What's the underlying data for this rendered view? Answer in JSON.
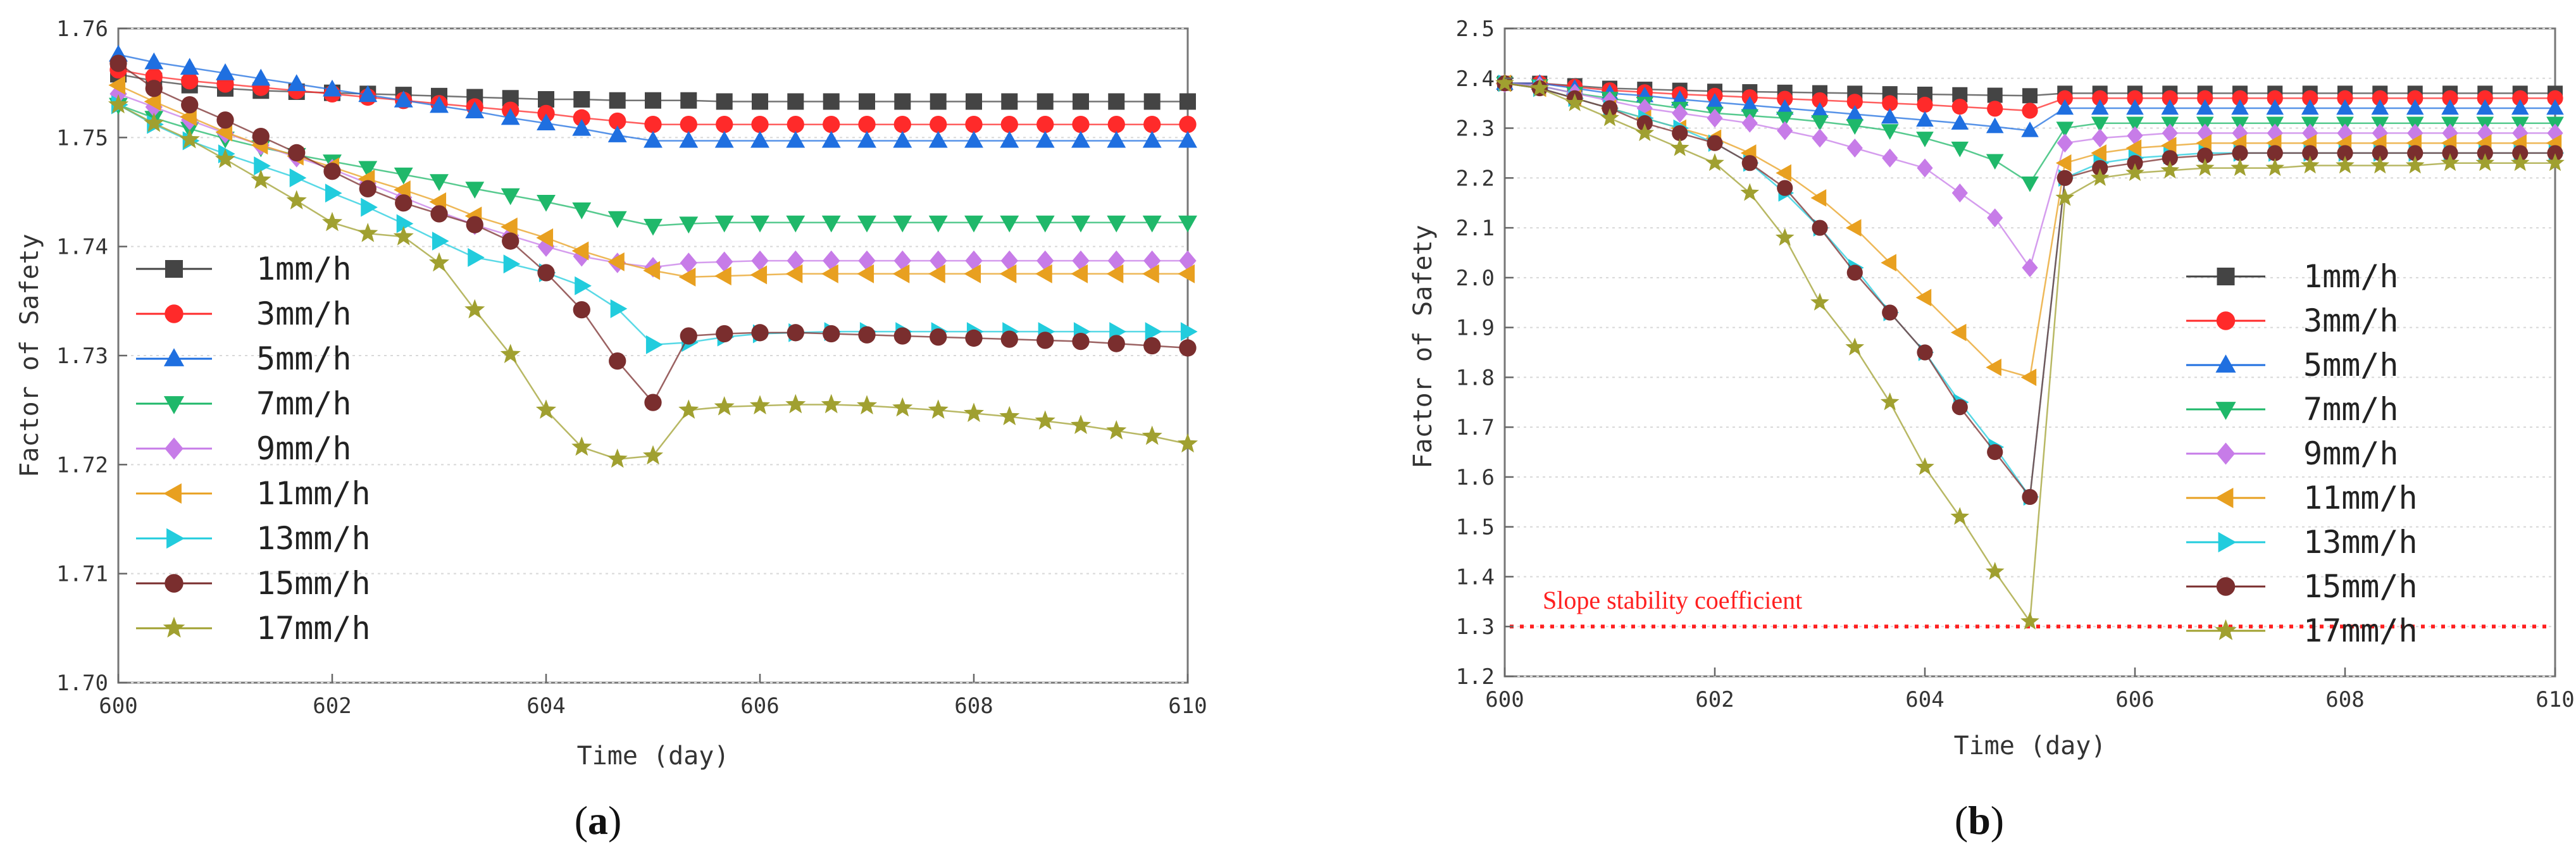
{
  "chart_data": [
    {
      "type": "line",
      "panel_label": "(a)",
      "panel_letter": "a",
      "title": "",
      "xlabel": "Time (day)",
      "ylabel": "Factor of Safety",
      "xlim": [
        600,
        610
      ],
      "ylim": [
        1.7,
        1.76
      ],
      "xticks": [
        600,
        602,
        604,
        606,
        608,
        610
      ],
      "yticks": [
        1.7,
        1.71,
        1.72,
        1.73,
        1.74,
        1.75,
        1.76
      ],
      "ytick_labels": [
        "1.70",
        "1.71",
        "1.72",
        "1.73",
        "1.74",
        "1.75",
        "1.76"
      ],
      "legend_position": "left",
      "x": [
        600,
        600.333,
        600.667,
        601,
        601.333,
        601.667,
        602,
        602.333,
        602.667,
        603,
        603.333,
        603.667,
        604,
        604.333,
        604.667,
        605,
        605.333,
        605.667,
        606,
        606.333,
        606.667,
        607,
        607.333,
        607.667,
        608,
        608.333,
        608.667,
        609,
        609.333,
        609.667,
        610
      ],
      "series": [
        {
          "name": "1mm/h",
          "color": "#444444",
          "marker": "square",
          "values": [
            1.7558,
            1.7552,
            1.7548,
            1.7545,
            1.7543,
            1.7542,
            1.7541,
            1.754,
            1.7539,
            1.7538,
            1.7537,
            1.7536,
            1.7535,
            1.7535,
            1.7534,
            1.7534,
            1.7534,
            1.7533,
            1.7533,
            1.7533,
            1.7533,
            1.7533,
            1.7533,
            1.7533,
            1.7533,
            1.7533,
            1.7533,
            1.7533,
            1.7533,
            1.7533,
            1.7533
          ]
        },
        {
          "name": "3mm/h",
          "color": "#ff2a2a",
          "marker": "circle",
          "values": [
            1.7562,
            1.7556,
            1.7552,
            1.7549,
            1.7546,
            1.7543,
            1.754,
            1.7537,
            1.7534,
            1.7531,
            1.7528,
            1.7525,
            1.7522,
            1.7518,
            1.7515,
            1.7512,
            1.7512,
            1.7512,
            1.7512,
            1.7512,
            1.7512,
            1.7512,
            1.7512,
            1.7512,
            1.7512,
            1.7512,
            1.7512,
            1.7512,
            1.7512,
            1.7512,
            1.7512
          ]
        },
        {
          "name": "5mm/h",
          "color": "#1f6fe0",
          "marker": "triangle-up",
          "values": [
            1.7576,
            1.7569,
            1.7564,
            1.7559,
            1.7554,
            1.7549,
            1.7544,
            1.7539,
            1.7534,
            1.7529,
            1.7524,
            1.7518,
            1.7513,
            1.7508,
            1.7502,
            1.7497,
            1.7497,
            1.7497,
            1.7497,
            1.7497,
            1.7497,
            1.7497,
            1.7497,
            1.7497,
            1.7497,
            1.7497,
            1.7497,
            1.7497,
            1.7497,
            1.7497,
            1.7497
          ]
        },
        {
          "name": "7mm/h",
          "color": "#1fb86a",
          "marker": "triangle-down",
          "values": [
            1.753,
            1.7518,
            1.7508,
            1.7499,
            1.7491,
            1.7484,
            1.7478,
            1.7472,
            1.7466,
            1.746,
            1.7453,
            1.7447,
            1.7441,
            1.7434,
            1.7426,
            1.7419,
            1.7421,
            1.7422,
            1.7422,
            1.7422,
            1.7422,
            1.7422,
            1.7422,
            1.7422,
            1.7422,
            1.7422,
            1.7422,
            1.7422,
            1.7422,
            1.7422,
            1.7422
          ]
        },
        {
          "name": "9mm/h",
          "color": "#c77ce8",
          "marker": "diamond",
          "values": [
            1.754,
            1.7528,
            1.7516,
            1.7504,
            1.7493,
            1.7482,
            1.7471,
            1.7458,
            1.7445,
            1.7432,
            1.742,
            1.741,
            1.74,
            1.7391,
            1.7385,
            1.7381,
            1.7385,
            1.7386,
            1.7387,
            1.7387,
            1.7387,
            1.7387,
            1.7387,
            1.7387,
            1.7387,
            1.7387,
            1.7387,
            1.7387,
            1.7387,
            1.7387,
            1.7387
          ]
        },
        {
          "name": "11mm/h",
          "color": "#e8a020",
          "marker": "triangle-left",
          "values": [
            1.7548,
            1.7533,
            1.7519,
            1.7505,
            1.7493,
            1.7483,
            1.7473,
            1.7462,
            1.7452,
            1.7441,
            1.7428,
            1.7418,
            1.7408,
            1.7396,
            1.7386,
            1.7378,
            1.7372,
            1.7373,
            1.7374,
            1.7375,
            1.7375,
            1.7375,
            1.7375,
            1.7375,
            1.7375,
            1.7375,
            1.7375,
            1.7375,
            1.7375,
            1.7375,
            1.7375
          ]
        },
        {
          "name": "13mm/h",
          "color": "#22ccdd",
          "marker": "triangle-right",
          "values": [
            1.753,
            1.7512,
            1.7497,
            1.7485,
            1.7474,
            1.7463,
            1.7449,
            1.7436,
            1.7421,
            1.7405,
            1.739,
            1.7384,
            1.7376,
            1.7364,
            1.7343,
            1.731,
            1.7312,
            1.7317,
            1.732,
            1.7321,
            1.7322,
            1.7322,
            1.7322,
            1.7322,
            1.7322,
            1.7322,
            1.7322,
            1.7322,
            1.7322,
            1.7322,
            1.7322
          ]
        },
        {
          "name": "15mm/h",
          "color": "#7a2e2e",
          "marker": "circle",
          "values": [
            1.7568,
            1.7545,
            1.753,
            1.7516,
            1.7501,
            1.7486,
            1.7469,
            1.7453,
            1.744,
            1.743,
            1.742,
            1.7405,
            1.7376,
            1.7342,
            1.7295,
            1.7257,
            1.7318,
            1.732,
            1.7321,
            1.7321,
            1.732,
            1.7319,
            1.7318,
            1.7317,
            1.7316,
            1.7315,
            1.7314,
            1.7313,
            1.7311,
            1.7309,
            1.7307
          ]
        },
        {
          "name": "17mm/h",
          "color": "#a0a030",
          "marker": "star",
          "values": [
            1.753,
            1.7513,
            1.7498,
            1.748,
            1.7461,
            1.7442,
            1.7422,
            1.7412,
            1.7409,
            1.7385,
            1.7342,
            1.7301,
            1.725,
            1.7216,
            1.7205,
            1.7208,
            1.725,
            1.7253,
            1.7254,
            1.7255,
            1.7255,
            1.7254,
            1.7252,
            1.725,
            1.7247,
            1.7244,
            1.724,
            1.7236,
            1.7231,
            1.7226,
            1.7219
          ]
        }
      ]
    },
    {
      "type": "line",
      "panel_label": "(b)",
      "panel_letter": "b",
      "title": "",
      "xlabel": "Time (day)",
      "ylabel": "Factor of Safety",
      "xlim": [
        600,
        610
      ],
      "ylim": [
        1.2,
        2.5
      ],
      "xticks": [
        600,
        602,
        604,
        606,
        608,
        610
      ],
      "yticks": [
        1.2,
        1.3,
        1.4,
        1.5,
        1.6,
        1.7,
        1.8,
        1.9,
        2.0,
        2.1,
        2.2,
        2.3,
        2.4,
        2.5
      ],
      "ytick_labels": [
        "1.2",
        "1.3",
        "1.4",
        "1.5",
        "1.6",
        "1.7",
        "1.8",
        "1.9",
        "2.0",
        "2.1",
        "2.2",
        "2.3",
        "2.4",
        "2.5"
      ],
      "legend_position": "center-right",
      "annotation": {
        "text": "Slope stability coefficient",
        "y": 1.3,
        "color": "#ff2020"
      },
      "x": [
        600,
        600.333,
        600.667,
        601,
        601.333,
        601.667,
        602,
        602.333,
        602.667,
        603,
        603.333,
        603.667,
        604,
        604.333,
        604.667,
        605,
        605.333,
        605.667,
        606,
        606.333,
        606.667,
        607,
        607.333,
        607.667,
        608,
        608.333,
        608.667,
        609,
        609.333,
        609.667,
        610
      ],
      "series": [
        {
          "name": "1mm/h",
          "color": "#444444",
          "marker": "square",
          "values": [
            2.39,
            2.39,
            2.385,
            2.38,
            2.378,
            2.376,
            2.374,
            2.373,
            2.372,
            2.371,
            2.37,
            2.369,
            2.368,
            2.367,
            2.366,
            2.365,
            2.37,
            2.37,
            2.37,
            2.37,
            2.37,
            2.37,
            2.37,
            2.37,
            2.37,
            2.37,
            2.37,
            2.37,
            2.37,
            2.37,
            2.37
          ]
        },
        {
          "name": "3mm/h",
          "color": "#ff2a2a",
          "marker": "circle",
          "values": [
            2.39,
            2.39,
            2.383,
            2.376,
            2.372,
            2.368,
            2.365,
            2.362,
            2.359,
            2.356,
            2.353,
            2.35,
            2.347,
            2.343,
            2.339,
            2.335,
            2.36,
            2.36,
            2.36,
            2.36,
            2.36,
            2.36,
            2.36,
            2.36,
            2.36,
            2.36,
            2.36,
            2.36,
            2.36,
            2.36,
            2.36
          ]
        },
        {
          "name": "5mm/h",
          "color": "#1f6fe0",
          "marker": "triangle-up",
          "values": [
            2.39,
            2.39,
            2.38,
            2.37,
            2.365,
            2.358,
            2.352,
            2.346,
            2.34,
            2.334,
            2.328,
            2.322,
            2.316,
            2.31,
            2.303,
            2.295,
            2.34,
            2.34,
            2.34,
            2.34,
            2.34,
            2.34,
            2.34,
            2.34,
            2.34,
            2.34,
            2.34,
            2.34,
            2.34,
            2.34,
            2.34
          ]
        },
        {
          "name": "7mm/h",
          "color": "#1fb86a",
          "marker": "triangle-down",
          "values": [
            2.39,
            2.385,
            2.37,
            2.36,
            2.35,
            2.34,
            2.33,
            2.325,
            2.32,
            2.313,
            2.305,
            2.295,
            2.28,
            2.26,
            2.235,
            2.19,
            2.3,
            2.31,
            2.31,
            2.31,
            2.31,
            2.31,
            2.31,
            2.31,
            2.31,
            2.31,
            2.31,
            2.31,
            2.31,
            2.31,
            2.31
          ]
        },
        {
          "name": "9mm/h",
          "color": "#c77ce8",
          "marker": "diamond",
          "values": [
            2.39,
            2.385,
            2.37,
            2.355,
            2.34,
            2.33,
            2.32,
            2.31,
            2.295,
            2.28,
            2.26,
            2.24,
            2.22,
            2.17,
            2.12,
            2.02,
            2.27,
            2.28,
            2.285,
            2.29,
            2.29,
            2.29,
            2.29,
            2.29,
            2.29,
            2.29,
            2.29,
            2.29,
            2.29,
            2.29,
            2.29
          ]
        },
        {
          "name": "11mm/h",
          "color": "#e8a020",
          "marker": "triangle-left",
          "values": [
            2.39,
            2.38,
            2.36,
            2.34,
            2.32,
            2.3,
            2.28,
            2.25,
            2.21,
            2.16,
            2.1,
            2.03,
            1.96,
            1.89,
            1.82,
            1.8,
            2.23,
            2.25,
            2.26,
            2.265,
            2.27,
            2.27,
            2.27,
            2.27,
            2.27,
            2.27,
            2.27,
            2.27,
            2.27,
            2.27,
            2.27
          ]
        },
        {
          "name": "13mm/h",
          "color": "#22ccdd",
          "marker": "triangle-right",
          "values": [
            2.39,
            2.38,
            2.36,
            2.34,
            2.32,
            2.3,
            2.27,
            2.23,
            2.17,
            2.1,
            2.02,
            1.93,
            1.85,
            1.75,
            1.66,
            1.56,
            2.2,
            2.23,
            2.24,
            2.245,
            2.25,
            2.25,
            2.25,
            2.25,
            2.25,
            2.25,
            2.25,
            2.25,
            2.25,
            2.25,
            2.25
          ]
        },
        {
          "name": "15mm/h",
          "color": "#7a2e2e",
          "marker": "circle",
          "values": [
            2.39,
            2.38,
            2.36,
            2.34,
            2.31,
            2.29,
            2.27,
            2.23,
            2.18,
            2.1,
            2.01,
            1.93,
            1.85,
            1.74,
            1.65,
            1.56,
            2.2,
            2.22,
            2.23,
            2.24,
            2.245,
            2.25,
            2.25,
            2.25,
            2.25,
            2.25,
            2.25,
            2.25,
            2.25,
            2.25,
            2.25
          ]
        },
        {
          "name": "17mm/h",
          "color": "#a0a030",
          "marker": "star",
          "values": [
            2.39,
            2.38,
            2.35,
            2.32,
            2.29,
            2.26,
            2.23,
            2.17,
            2.08,
            1.95,
            1.86,
            1.75,
            1.62,
            1.52,
            1.41,
            1.31,
            2.16,
            2.2,
            2.21,
            2.215,
            2.22,
            2.22,
            2.22,
            2.225,
            2.225,
            2.225,
            2.225,
            2.23,
            2.23,
            2.23,
            2.23
          ]
        }
      ]
    }
  ]
}
